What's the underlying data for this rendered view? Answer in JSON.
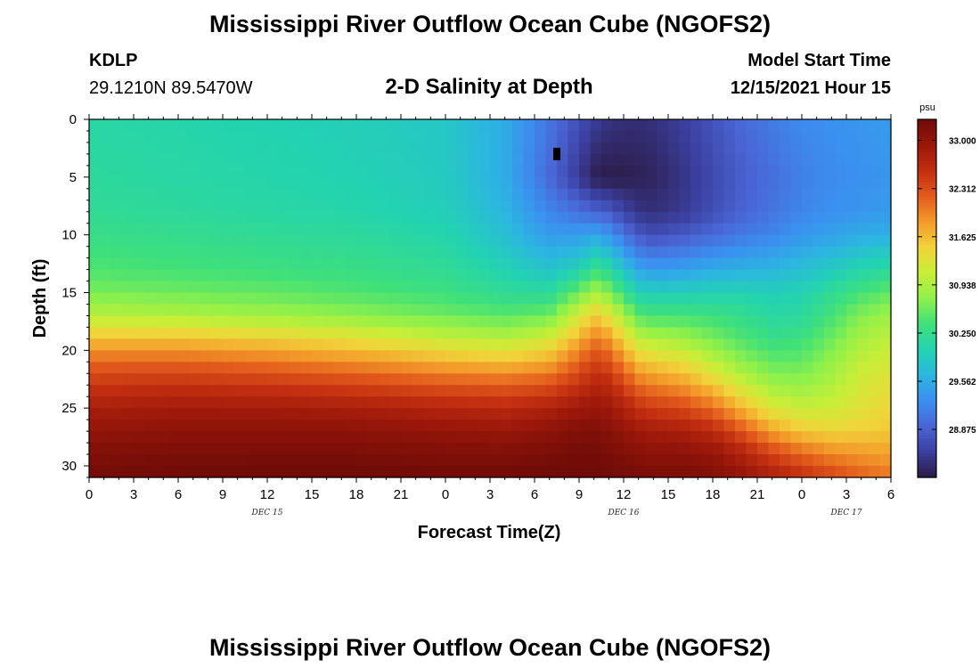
{
  "header": {
    "title": "Mississippi River Outflow Ocean Cube (NGOFS2)",
    "station": "KDLP",
    "coords": "29.1210N  89.5470W",
    "subtitle": "2-D Salinity at Depth",
    "model_start_label": "Model Start Time",
    "model_start_value": "12/15/2021 Hour 15"
  },
  "footer": {
    "title": "Mississippi River Outflow Ocean Cube (NGOFS2)"
  },
  "chart_data": {
    "type": "heatmap",
    "title": "2-D Salinity at Depth",
    "xlabel": "Forecast Time(Z)",
    "ylabel": "Depth (ft)",
    "x_range_hours": [
      0,
      54
    ],
    "x_ticks": [
      "0",
      "3",
      "6",
      "9",
      "12",
      "15",
      "18",
      "21",
      "0",
      "3",
      "6",
      "9",
      "12",
      "15",
      "18",
      "21",
      "0",
      "3",
      "6"
    ],
    "date_labels": [
      {
        "label": "DEC 15",
        "at_hour": 12
      },
      {
        "label": "DEC 16",
        "at_hour": 36
      },
      {
        "label": "DEC 17",
        "at_hour": 51
      }
    ],
    "y_range": [
      0,
      31
    ],
    "y_ticks": [
      0,
      5,
      10,
      15,
      20,
      25,
      30
    ],
    "colorbar": {
      "unit": "psu",
      "ticks": [
        "33.000",
        "32.312",
        "31.625",
        "30.938",
        "30.250",
        "29.562",
        "28.875"
      ],
      "min": 28.19,
      "max": 33.3,
      "colors": [
        "#2b1b45",
        "#3b3f9e",
        "#4a66d6",
        "#3b8ff0",
        "#2bb6e0",
        "#23d3b0",
        "#3fe07a",
        "#8ef04a",
        "#c9ee37",
        "#f2d33a",
        "#f39a2a",
        "#e35a1c",
        "#c22e10",
        "#9a170a",
        "#6e0b07"
      ]
    },
    "salinity_profile_hours": [
      0,
      6,
      12,
      18,
      24,
      28,
      31,
      33,
      34,
      35,
      36,
      37,
      38,
      40,
      42,
      44,
      46,
      48,
      50,
      52,
      54
    ],
    "salinity_profiles_psu": [
      {
        "depth": 0,
        "values": [
          30.1,
          30.05,
          30.0,
          29.95,
          29.85,
          29.55,
          29.05,
          28.7,
          28.55,
          28.45,
          28.4,
          28.38,
          28.42,
          28.55,
          28.75,
          28.95,
          29.1,
          29.25,
          29.3,
          29.35,
          29.4
        ]
      },
      {
        "depth": 5,
        "values": [
          30.15,
          30.1,
          30.05,
          30.0,
          29.9,
          29.55,
          28.95,
          28.5,
          28.25,
          28.2,
          28.22,
          28.26,
          28.3,
          28.45,
          28.65,
          28.85,
          29.0,
          29.15,
          29.25,
          29.3,
          29.35
        ]
      },
      {
        "depth": 8,
        "values": [
          30.2,
          30.15,
          30.1,
          30.05,
          29.95,
          29.65,
          29.2,
          29.0,
          28.9,
          28.8,
          28.6,
          28.45,
          28.4,
          28.5,
          28.7,
          28.9,
          29.05,
          29.2,
          29.3,
          29.35,
          29.4
        ]
      },
      {
        "depth": 10,
        "values": [
          30.3,
          30.25,
          30.2,
          30.15,
          30.05,
          29.75,
          29.4,
          29.4,
          29.5,
          29.35,
          29.05,
          28.8,
          28.7,
          28.8,
          28.95,
          29.1,
          29.2,
          29.35,
          29.45,
          29.55,
          29.6
        ]
      },
      {
        "depth": 13,
        "values": [
          30.45,
          30.4,
          30.35,
          30.3,
          30.2,
          30.0,
          29.8,
          30.0,
          30.3,
          30.15,
          29.8,
          29.5,
          29.4,
          29.45,
          29.55,
          29.6,
          29.65,
          29.75,
          29.9,
          30.05,
          30.15
        ]
      },
      {
        "depth": 15,
        "values": [
          30.65,
          30.6,
          30.55,
          30.45,
          30.35,
          30.2,
          30.15,
          30.6,
          30.9,
          30.7,
          30.3,
          30.0,
          29.95,
          29.95,
          30.0,
          30.0,
          29.95,
          30.0,
          30.2,
          30.4,
          30.55
        ]
      },
      {
        "depth": 17,
        "values": [
          31.0,
          30.95,
          30.85,
          30.75,
          30.6,
          30.5,
          30.6,
          31.2,
          31.5,
          31.3,
          30.9,
          30.5,
          30.4,
          30.4,
          30.35,
          30.25,
          30.1,
          30.15,
          30.4,
          30.7,
          30.85
        ]
      },
      {
        "depth": 19,
        "values": [
          31.6,
          31.6,
          31.5,
          31.35,
          31.1,
          31.0,
          31.2,
          31.7,
          32.0,
          31.85,
          31.45,
          31.05,
          30.95,
          30.85,
          30.65,
          30.45,
          30.3,
          30.35,
          30.6,
          30.9,
          31.05
        ]
      },
      {
        "depth": 21,
        "values": [
          32.15,
          32.15,
          32.05,
          31.9,
          31.7,
          31.6,
          31.75,
          32.15,
          32.4,
          32.3,
          31.95,
          31.6,
          31.5,
          31.35,
          31.05,
          30.75,
          30.55,
          30.55,
          30.8,
          31.05,
          31.2
        ]
      },
      {
        "depth": 23,
        "values": [
          32.5,
          32.55,
          32.5,
          32.4,
          32.25,
          32.2,
          32.3,
          32.55,
          32.7,
          32.65,
          32.4,
          32.1,
          32.0,
          31.85,
          31.55,
          31.15,
          30.85,
          30.8,
          30.95,
          31.2,
          31.35
        ]
      },
      {
        "depth": 25,
        "values": [
          32.8,
          32.85,
          32.85,
          32.8,
          32.7,
          32.65,
          32.75,
          32.9,
          32.95,
          32.9,
          32.75,
          32.55,
          32.45,
          32.35,
          32.1,
          31.65,
          31.25,
          31.1,
          31.15,
          31.3,
          31.45
        ]
      },
      {
        "depth": 27,
        "values": [
          33.0,
          33.05,
          33.05,
          33.05,
          33.0,
          32.95,
          33.05,
          33.15,
          33.15,
          33.1,
          33.0,
          32.9,
          32.85,
          32.8,
          32.65,
          32.25,
          31.8,
          31.55,
          31.45,
          31.5,
          31.55
        ]
      },
      {
        "depth": 29,
        "values": [
          33.15,
          33.2,
          33.2,
          33.2,
          33.15,
          33.15,
          33.2,
          33.25,
          33.25,
          33.2,
          33.15,
          33.1,
          33.05,
          33.05,
          33.0,
          32.75,
          32.4,
          32.15,
          31.95,
          31.85,
          31.8
        ]
      },
      {
        "depth": 31,
        "values": [
          33.25,
          33.28,
          33.3,
          33.3,
          33.28,
          33.28,
          33.3,
          33.3,
          33.3,
          33.28,
          33.25,
          33.22,
          33.2,
          33.2,
          33.15,
          33.0,
          32.8,
          32.6,
          32.4,
          32.2,
          32.05
        ]
      }
    ],
    "marker": {
      "hour": 31.5,
      "depth": 3,
      "color": "#000000"
    }
  }
}
